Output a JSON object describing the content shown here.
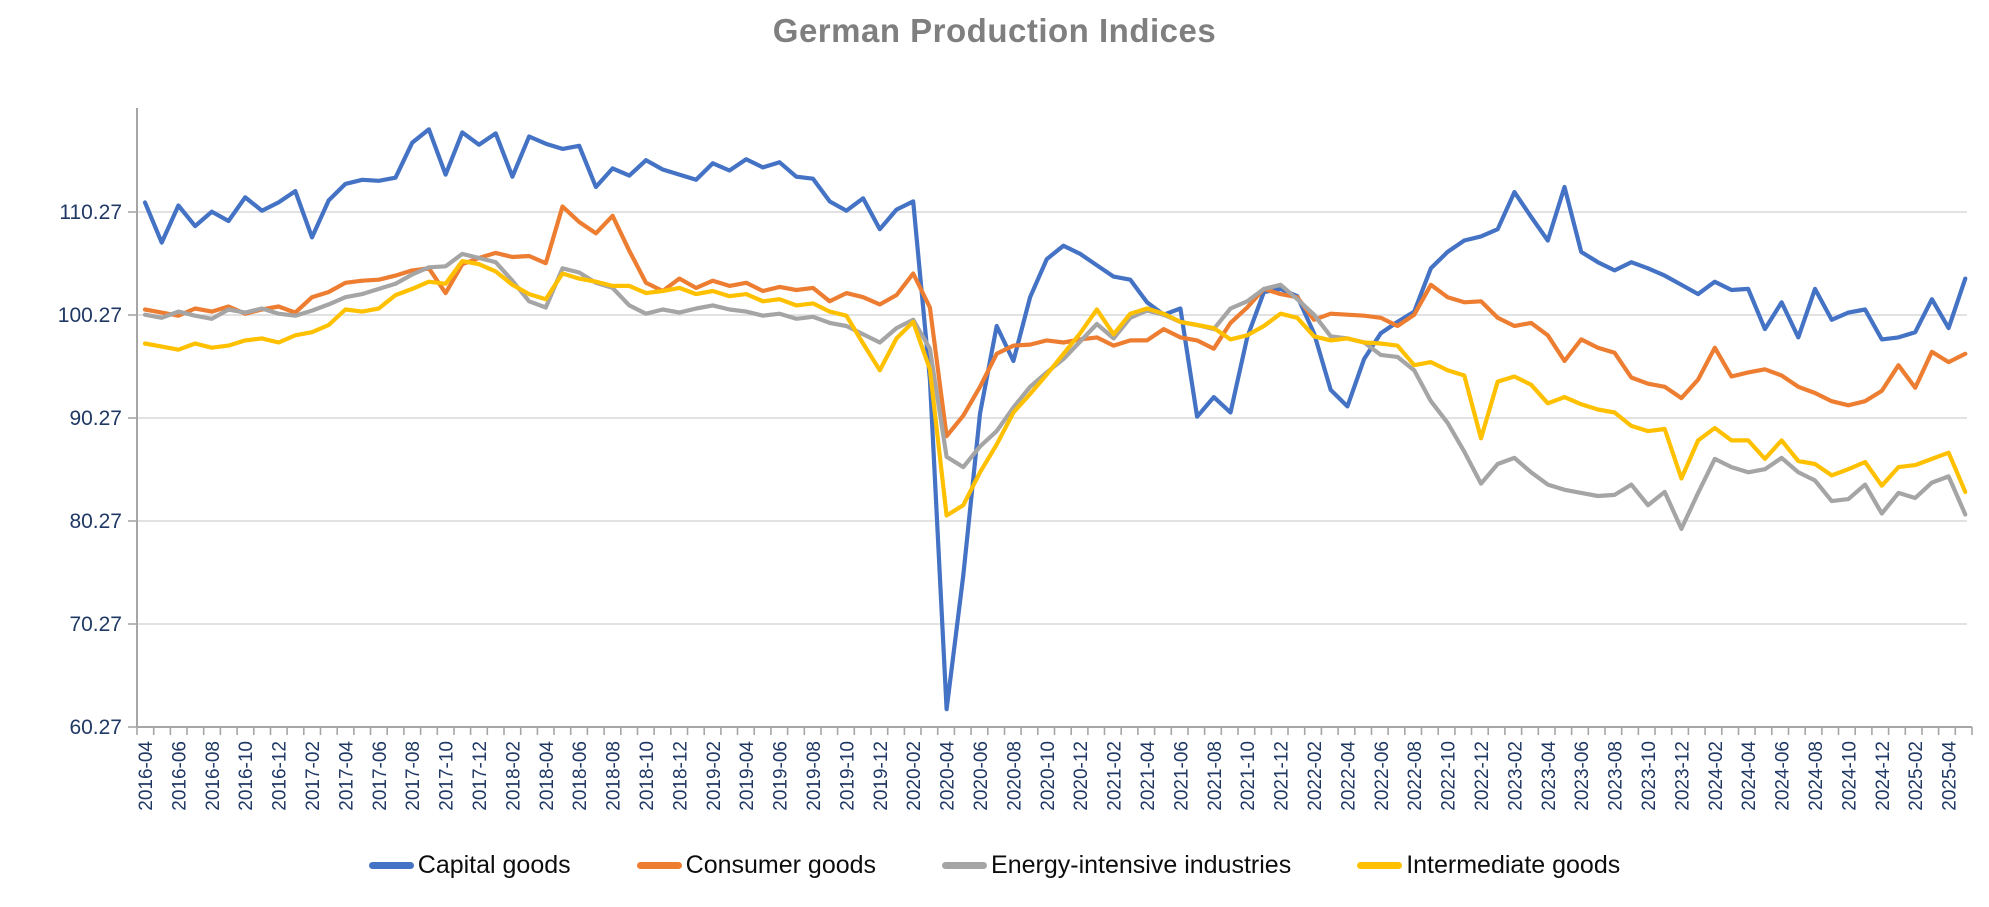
{
  "title": "German Production Indices",
  "colors": {
    "capital_goods": "#4472C4",
    "consumer_goods": "#ED7D31",
    "energy_intensive": "#A5A5A5",
    "intermediate_goods": "#FFC000",
    "axis_text": "#1F3864",
    "title_text": "#7F7F7F",
    "gridline": "#D9D9D9",
    "axis_line": "#A6A6A6",
    "legend_text": "#0D0D0D",
    "background": "#FFFFFF"
  },
  "legend": {
    "items": [
      {
        "label": "Capital goods",
        "color": "#4472C4"
      },
      {
        "label": "Consumer goods",
        "color": "#ED7D31"
      },
      {
        "label": "Energy-intensive industries",
        "color": "#A5A5A5"
      },
      {
        "label": "Intermediate goods",
        "color": "#FFC000"
      }
    ]
  },
  "chart_data": {
    "type": "line",
    "title": "German Production Indices",
    "xlabel": "",
    "ylabel": "",
    "ylim": [
      60.27,
      120.27
    ],
    "grid": true,
    "legend_position": "bottom",
    "y_tick_labels": [
      "60.27",
      "70.27",
      "80.27",
      "90.27",
      "100.27",
      "110.27"
    ],
    "y_tick_values": [
      60.27,
      70.27,
      80.27,
      90.27,
      100.27,
      110.27
    ],
    "x_tick_labels_shown": [
      "2016-04",
      "2016-06",
      "2016-08",
      "2016-10",
      "2016-12",
      "2017-02",
      "2017-04",
      "2017-06",
      "2017-08",
      "2017-10",
      "2017-12",
      "2018-02",
      "2018-04",
      "2018-06",
      "2018-08",
      "2018-10",
      "2018-12",
      "2019-02",
      "2019-04",
      "2019-06",
      "2019-08",
      "2019-10",
      "2019-12",
      "2020-02",
      "2020-04",
      "2020-06",
      "2020-08",
      "2020-10",
      "2020-12",
      "2021-02",
      "2021-04",
      "2021-06",
      "2021-08",
      "2021-10",
      "2021-12",
      "2022-02",
      "2022-04",
      "2022-06",
      "2022-08",
      "2022-10",
      "2022-12",
      "2023-02",
      "2023-04",
      "2023-06",
      "2023-08",
      "2023-10",
      "2023-12",
      "2024-02",
      "2024-04",
      "2024-06",
      "2024-08",
      "2024-10",
      "2024-12",
      "2025-02",
      "2025-04"
    ],
    "x": [
      "2016-04",
      "2016-05",
      "2016-06",
      "2016-07",
      "2016-08",
      "2016-09",
      "2016-10",
      "2016-11",
      "2016-12",
      "2017-01",
      "2017-02",
      "2017-03",
      "2017-04",
      "2017-05",
      "2017-06",
      "2017-07",
      "2017-08",
      "2017-09",
      "2017-10",
      "2017-11",
      "2017-12",
      "2018-01",
      "2018-02",
      "2018-03",
      "2018-04",
      "2018-05",
      "2018-06",
      "2018-07",
      "2018-08",
      "2018-09",
      "2018-10",
      "2018-11",
      "2018-12",
      "2019-01",
      "2019-02",
      "2019-03",
      "2019-04",
      "2019-05",
      "2019-06",
      "2019-07",
      "2019-08",
      "2019-09",
      "2019-10",
      "2019-11",
      "2019-12",
      "2020-01",
      "2020-02",
      "2020-03",
      "2020-04",
      "2020-05",
      "2020-06",
      "2020-07",
      "2020-08",
      "2020-09",
      "2020-10",
      "2020-11",
      "2020-12",
      "2021-01",
      "2021-02",
      "2021-03",
      "2021-04",
      "2021-05",
      "2021-06",
      "2021-07",
      "2021-08",
      "2021-09",
      "2021-10",
      "2021-11",
      "2021-12",
      "2022-01",
      "2022-02",
      "2022-03",
      "2022-04",
      "2022-05",
      "2022-06",
      "2022-07",
      "2022-08",
      "2022-09",
      "2022-10",
      "2022-11",
      "2022-12",
      "2023-01",
      "2023-02",
      "2023-03",
      "2023-04",
      "2023-05",
      "2023-06",
      "2023-07",
      "2023-08",
      "2023-09",
      "2023-10",
      "2023-11",
      "2023-12",
      "2024-01",
      "2024-02",
      "2024-03",
      "2024-04",
      "2024-05",
      "2024-06",
      "2024-07",
      "2024-08",
      "2024-09",
      "2024-10",
      "2024-11",
      "2024-12",
      "2025-01",
      "2025-02",
      "2025-03",
      "2025-04",
      "2025-05"
    ],
    "series": [
      {
        "name": "Capital goods",
        "color": "#4472C4",
        "values": [
          111.2,
          107.3,
          110.9,
          108.9,
          110.3,
          109.4,
          111.7,
          110.4,
          111.2,
          112.3,
          107.8,
          111.4,
          113.0,
          113.4,
          113.3,
          113.6,
          117.0,
          118.3,
          113.9,
          118.0,
          116.8,
          117.9,
          113.7,
          117.6,
          116.9,
          116.4,
          116.7,
          112.7,
          114.5,
          113.8,
          115.3,
          114.4,
          113.9,
          113.4,
          115.0,
          114.3,
          115.4,
          114.6,
          115.1,
          113.7,
          113.5,
          111.3,
          110.4,
          111.6,
          108.6,
          110.5,
          111.3,
          94.0,
          62.0,
          75.0,
          90.7,
          99.2,
          95.8,
          102.0,
          105.7,
          107.0,
          106.2,
          105.1,
          104.0,
          103.7,
          101.5,
          100.3,
          100.9,
          90.4,
          92.3,
          90.8,
          98.1,
          102.5,
          102.8,
          102.1,
          98.5,
          93.0,
          91.4,
          96.0,
          98.5,
          99.6,
          100.6,
          104.8,
          106.4,
          107.5,
          107.9,
          108.6,
          112.2,
          109.8,
          107.5,
          112.7,
          106.4,
          105.4,
          104.6,
          105.4,
          104.8,
          104.1,
          103.2,
          102.3,
          103.5,
          102.7,
          102.8,
          98.9,
          101.5,
          98.1,
          102.8,
          99.8,
          100.5,
          100.8,
          97.9,
          98.1,
          98.6,
          101.8,
          99.0,
          103.8
        ]
      },
      {
        "name": "Consumer goods",
        "color": "#ED7D31",
        "values": [
          100.8,
          100.5,
          100.2,
          100.9,
          100.6,
          101.1,
          100.4,
          100.8,
          101.1,
          100.5,
          102.0,
          102.5,
          103.4,
          103.6,
          103.7,
          104.1,
          104.6,
          104.8,
          102.4,
          105.2,
          105.8,
          106.3,
          105.9,
          106.0,
          105.3,
          110.8,
          109.3,
          108.2,
          109.9,
          106.5,
          103.4,
          102.6,
          103.8,
          102.9,
          103.6,
          103.1,
          103.4,
          102.6,
          103.0,
          102.7,
          102.9,
          101.6,
          102.4,
          102.0,
          101.3,
          102.2,
          104.3,
          101.0,
          88.5,
          90.5,
          93.3,
          96.5,
          97.3,
          97.4,
          97.8,
          97.6,
          97.9,
          98.1,
          97.3,
          97.8,
          97.8,
          98.9,
          98.1,
          97.8,
          97.0,
          99.5,
          101.0,
          102.8,
          102.3,
          102.0,
          99.8,
          100.4,
          100.3,
          100.2,
          100.0,
          99.2,
          100.3,
          103.2,
          102.0,
          101.5,
          101.6,
          100.0,
          99.2,
          99.5,
          98.3,
          95.8,
          97.9,
          97.1,
          96.6,
          94.2,
          93.6,
          93.3,
          92.2,
          94.0,
          97.1,
          94.3,
          94.7,
          95.0,
          94.4,
          93.3,
          92.7,
          91.9,
          91.5,
          91.9,
          92.9,
          95.4,
          93.2,
          96.7,
          95.7,
          96.5
        ]
      },
      {
        "name": "Energy-intensive industries",
        "color": "#A5A5A5",
        "values": [
          100.3,
          100.0,
          100.6,
          100.2,
          99.9,
          100.8,
          100.5,
          100.9,
          100.4,
          100.2,
          100.7,
          101.3,
          102.0,
          102.3,
          102.8,
          103.3,
          104.2,
          104.9,
          105.0,
          106.2,
          105.8,
          105.4,
          103.6,
          101.6,
          101.0,
          104.8,
          104.4,
          103.4,
          102.9,
          101.2,
          100.4,
          100.8,
          100.5,
          100.9,
          101.2,
          100.8,
          100.6,
          100.2,
          100.4,
          99.9,
          100.1,
          99.5,
          99.2,
          98.4,
          97.6,
          99.0,
          99.8,
          97.0,
          86.5,
          85.5,
          87.5,
          89.0,
          91.3,
          93.3,
          94.7,
          96.0,
          97.7,
          99.4,
          98.0,
          100.0,
          100.7,
          100.3,
          99.6,
          99.3,
          98.9,
          100.9,
          101.6,
          102.8,
          103.2,
          101.8,
          100.3,
          98.2,
          98.0,
          97.6,
          96.4,
          96.2,
          94.9,
          91.9,
          89.8,
          87.0,
          83.9,
          85.8,
          86.4,
          85.0,
          83.8,
          83.3,
          83.0,
          82.7,
          82.8,
          83.8,
          81.8,
          83.1,
          79.5,
          83.0,
          86.3,
          85.5,
          85.0,
          85.3,
          86.4,
          85.0,
          84.2,
          82.2,
          82.4,
          83.8,
          81.0,
          83.0,
          82.5,
          84.0,
          84.6,
          80.9
        ]
      },
      {
        "name": "Intermediate goods",
        "color": "#FFC000",
        "values": [
          97.5,
          97.2,
          96.9,
          97.5,
          97.1,
          97.3,
          97.8,
          98.0,
          97.6,
          98.3,
          98.6,
          99.3,
          100.8,
          100.6,
          100.9,
          102.2,
          102.8,
          103.5,
          103.3,
          105.5,
          105.2,
          104.5,
          103.2,
          102.3,
          101.8,
          104.3,
          103.8,
          103.5,
          103.1,
          103.1,
          102.4,
          102.6,
          102.9,
          102.3,
          102.6,
          102.1,
          102.3,
          101.6,
          101.8,
          101.2,
          101.4,
          100.6,
          100.2,
          97.5,
          94.9,
          98.0,
          99.6,
          95.0,
          80.8,
          81.8,
          85.0,
          87.7,
          90.8,
          92.6,
          94.5,
          96.5,
          98.5,
          100.8,
          98.4,
          100.4,
          100.9,
          100.4,
          99.6,
          99.3,
          99.0,
          97.9,
          98.3,
          99.2,
          100.4,
          100.0,
          98.2,
          97.8,
          98.0,
          97.6,
          97.5,
          97.3,
          95.4,
          95.7,
          94.9,
          94.4,
          88.3,
          93.8,
          94.3,
          93.5,
          91.7,
          92.3,
          91.6,
          91.1,
          90.8,
          89.5,
          89.0,
          89.2,
          84.4,
          88.1,
          89.3,
          88.1,
          88.1,
          86.3,
          88.1,
          86.1,
          85.8,
          84.7,
          85.3,
          86.0,
          83.7,
          85.5,
          85.7,
          86.3,
          86.9,
          83.1
        ]
      }
    ]
  }
}
